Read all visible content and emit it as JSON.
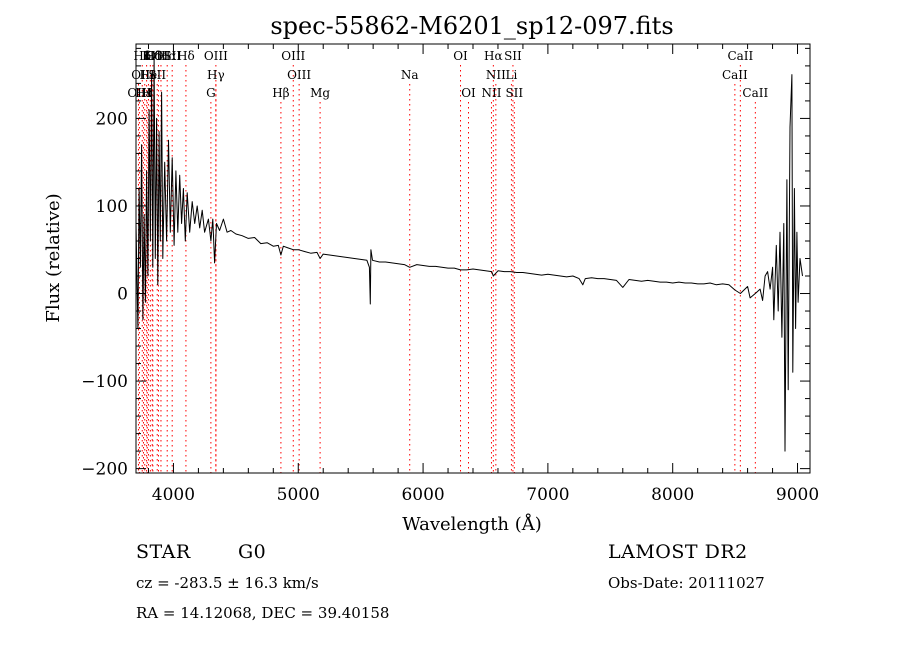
{
  "chart_data": {
    "type": "line",
    "title": "spec-55862-M6201_sp12-097.fits",
    "xlabel": "Wavelength (Å)",
    "ylabel": "Flux (relative)",
    "xlim": [
      3700,
      9100
    ],
    "ylim": [
      -205,
      285
    ],
    "xticks": [
      4000,
      5000,
      6000,
      7000,
      8000,
      9000
    ],
    "yticks": [
      -200,
      -100,
      0,
      100,
      200
    ],
    "grid": false,
    "series": [
      {
        "points": [
          [
            3700,
            80
          ],
          [
            3715,
            -40
          ],
          [
            3725,
            120
          ],
          [
            3735,
            30
          ],
          [
            3745,
            170
          ],
          [
            3755,
            -30
          ],
          [
            3765,
            90
          ],
          [
            3775,
            -10
          ],
          [
            3785,
            140
          ],
          [
            3795,
            20
          ],
          [
            3805,
            210
          ],
          [
            3815,
            60
          ],
          [
            3825,
            250
          ],
          [
            3835,
            30
          ],
          [
            3845,
            270
          ],
          [
            3855,
            40
          ],
          [
            3865,
            200
          ],
          [
            3875,
            10
          ],
          [
            3885,
            185
          ],
          [
            3895,
            60
          ],
          [
            3905,
            230
          ],
          [
            3915,
            40
          ],
          [
            3930,
            150
          ],
          [
            3945,
            60
          ],
          [
            3960,
            175
          ],
          [
            3975,
            70
          ],
          [
            3990,
            155
          ],
          [
            4005,
            55
          ],
          [
            4020,
            140
          ],
          [
            4035,
            70
          ],
          [
            4050,
            135
          ],
          [
            4065,
            80
          ],
          [
            4080,
            120
          ],
          [
            4095,
            60
          ],
          [
            4110,
            115
          ],
          [
            4130,
            70
          ],
          [
            4150,
            105
          ],
          [
            4170,
            80
          ],
          [
            4190,
            100
          ],
          [
            4210,
            75
          ],
          [
            4230,
            95
          ],
          [
            4250,
            70
          ],
          [
            4280,
            85
          ],
          [
            4300,
            60
          ],
          [
            4315,
            85
          ],
          [
            4330,
            35
          ],
          [
            4345,
            80
          ],
          [
            4370,
            72
          ],
          [
            4400,
            85
          ],
          [
            4430,
            70
          ],
          [
            4460,
            72
          ],
          [
            4500,
            68
          ],
          [
            4550,
            66
          ],
          [
            4600,
            63
          ],
          [
            4650,
            64
          ],
          [
            4700,
            57
          ],
          [
            4750,
            58
          ],
          [
            4800,
            54
          ],
          [
            4840,
            55
          ],
          [
            4861,
            44
          ],
          [
            4880,
            54
          ],
          [
            4920,
            52
          ],
          [
            4960,
            50
          ],
          [
            5000,
            50
          ],
          [
            5050,
            48
          ],
          [
            5100,
            46
          ],
          [
            5150,
            47
          ],
          [
            5175,
            40
          ],
          [
            5200,
            45
          ],
          [
            5250,
            44
          ],
          [
            5300,
            43
          ],
          [
            5350,
            42
          ],
          [
            5400,
            41
          ],
          [
            5450,
            40
          ],
          [
            5500,
            39
          ],
          [
            5550,
            38
          ],
          [
            5570,
            30
          ],
          [
            5577,
            -12
          ],
          [
            5582,
            50
          ],
          [
            5595,
            38
          ],
          [
            5650,
            36
          ],
          [
            5700,
            36
          ],
          [
            5750,
            35
          ],
          [
            5800,
            34
          ],
          [
            5850,
            33
          ],
          [
            5893,
            30
          ],
          [
            5950,
            33
          ],
          [
            6000,
            32
          ],
          [
            6050,
            31
          ],
          [
            6100,
            31
          ],
          [
            6150,
            30
          ],
          [
            6200,
            29
          ],
          [
            6250,
            29
          ],
          [
            6300,
            27
          ],
          [
            6350,
            27
          ],
          [
            6400,
            28
          ],
          [
            6450,
            27
          ],
          [
            6500,
            26
          ],
          [
            6550,
            25
          ],
          [
            6563,
            20
          ],
          [
            6600,
            26
          ],
          [
            6650,
            25
          ],
          [
            6700,
            25
          ],
          [
            6750,
            24
          ],
          [
            6800,
            24
          ],
          [
            6850,
            23
          ],
          [
            6900,
            22
          ],
          [
            6950,
            21
          ],
          [
            7000,
            22
          ],
          [
            7050,
            21
          ],
          [
            7100,
            20
          ],
          [
            7150,
            19
          ],
          [
            7200,
            20
          ],
          [
            7250,
            17
          ],
          [
            7280,
            10
          ],
          [
            7300,
            17
          ],
          [
            7350,
            18
          ],
          [
            7400,
            17
          ],
          [
            7450,
            17
          ],
          [
            7500,
            16
          ],
          [
            7550,
            15
          ],
          [
            7600,
            7
          ],
          [
            7650,
            16
          ],
          [
            7700,
            15
          ],
          [
            7750,
            14
          ],
          [
            7800,
            15
          ],
          [
            7850,
            14
          ],
          [
            7900,
            13
          ],
          [
            7950,
            13
          ],
          [
            8000,
            12
          ],
          [
            8050,
            13
          ],
          [
            8100,
            12
          ],
          [
            8150,
            12
          ],
          [
            8200,
            11
          ],
          [
            8250,
            11
          ],
          [
            8300,
            12
          ],
          [
            8350,
            10
          ],
          [
            8400,
            11
          ],
          [
            8450,
            10
          ],
          [
            8498,
            4
          ],
          [
            8542,
            0
          ],
          [
            8600,
            8
          ],
          [
            8620,
            -5
          ],
          [
            8662,
            0
          ],
          [
            8700,
            5
          ],
          [
            8720,
            -8
          ],
          [
            8740,
            20
          ],
          [
            8760,
            25
          ],
          [
            8780,
            5
          ],
          [
            8800,
            30
          ],
          [
            8810,
            -30
          ],
          [
            8830,
            55
          ],
          [
            8845,
            -20
          ],
          [
            8860,
            70
          ],
          [
            8875,
            -50
          ],
          [
            8890,
            80
          ],
          [
            8900,
            -180
          ],
          [
            8915,
            130
          ],
          [
            8925,
            -110
          ],
          [
            8940,
            190
          ],
          [
            8955,
            250
          ],
          [
            8962,
            -90
          ],
          [
            8975,
            120
          ],
          [
            8985,
            -40
          ],
          [
            8995,
            70
          ],
          [
            9005,
            -10
          ],
          [
            9020,
            40
          ],
          [
            9040,
            20
          ]
        ]
      }
    ],
    "lines": [
      {
        "label": "Hδ",
        "x": 3750,
        "row": 0
      },
      {
        "label": "K",
        "x": 3785,
        "row": 0
      },
      {
        "label": "H",
        "x": 3815,
        "row": 0
      },
      {
        "label": "Hδ",
        "x": 3835,
        "row": 0
      },
      {
        "label": "OIII",
        "x": 3880,
        "row": 0
      },
      {
        "label": "OI",
        "x": 3900,
        "row": 0
      },
      {
        "label": "Hα",
        "x": 3950,
        "row": 0
      },
      {
        "label": "SII",
        "x": 3990,
        "row": 0
      },
      {
        "label": "Hδ",
        "x": 4100,
        "row": 0
      },
      {
        "label": "OIII",
        "x": 4340,
        "row": 0
      },
      {
        "label": "OIII",
        "x": 4960,
        "row": 0
      },
      {
        "label": "OI",
        "x": 6300,
        "row": 0
      },
      {
        "label": "Hα",
        "x": 6563,
        "row": 0
      },
      {
        "label": "SII",
        "x": 6720,
        "row": 0
      },
      {
        "label": "CaII",
        "x": 8542,
        "row": 0
      },
      {
        "label": "OI",
        "x": 3720,
        "row": 1
      },
      {
        "label": "H",
        "x": 3770,
        "row": 1
      },
      {
        "label": "He",
        "x": 3800,
        "row": 1
      },
      {
        "label": "I",
        "x": 3830,
        "row": 1
      },
      {
        "label": "SII",
        "x": 3870,
        "row": 1
      },
      {
        "label": "Hγ",
        "x": 4340,
        "row": 1
      },
      {
        "label": "OIII",
        "x": 5007,
        "row": 1
      },
      {
        "label": "Na",
        "x": 5893,
        "row": 1
      },
      {
        "label": "NII",
        "x": 6583,
        "row": 1
      },
      {
        "label": "Li",
        "x": 6708,
        "row": 1
      },
      {
        "label": "CaII",
        "x": 8498,
        "row": 1
      },
      {
        "label": "OIII",
        "x": 3727,
        "row": 2
      },
      {
        "label": "Hε",
        "x": 3760,
        "row": 2
      },
      {
        "label": "H",
        "x": 3790,
        "row": 2
      },
      {
        "label": "G",
        "x": 4300,
        "row": 2
      },
      {
        "label": "Hβ",
        "x": 4861,
        "row": 2
      },
      {
        "label": "Mg",
        "x": 5175,
        "row": 2
      },
      {
        "label": "OI",
        "x": 6364,
        "row": 2
      },
      {
        "label": "NII",
        "x": 6548,
        "row": 2
      },
      {
        "label": "SII",
        "x": 6731,
        "row": 2
      },
      {
        "label": "CaII",
        "x": 8662,
        "row": 2
      }
    ],
    "colors": {
      "axes": "#000000",
      "spectrum": "#000000",
      "marker": "#ff0000"
    }
  },
  "info": {
    "object_class": "STAR",
    "subclass": "G0",
    "survey": "LAMOST DR2",
    "redshift": "cz = -283.5 ± 16.3 km/s",
    "obs_date": "Obs-Date: 20111027",
    "coords": "RA =  14.12068, DEC =  39.40158"
  }
}
